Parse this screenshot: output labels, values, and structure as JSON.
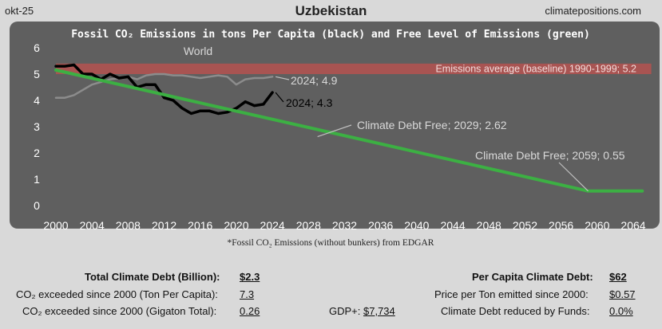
{
  "header": {
    "date": "okt-25",
    "country": "Uzbekistan",
    "site": "climatepositions.com"
  },
  "chart_data": {
    "type": "line",
    "title": "Fossil CO₂ Emissions in tons Per Capita (black) and Free Level of Emissions (green)",
    "source_note": "Fossil CO₂ Emissions (without bunkers) from EDGAR",
    "xlim": [
      2000,
      2066
    ],
    "ylim": [
      0,
      6
    ],
    "x_ticks": [
      2000,
      2004,
      2008,
      2012,
      2016,
      2020,
      2024,
      2028,
      2032,
      2036,
      2040,
      2044,
      2048,
      2052,
      2056,
      2060,
      2064
    ],
    "y_ticks": [
      0,
      1,
      2,
      3,
      4,
      5,
      6
    ],
    "baseline_band": {
      "label": "Emissions average (baseline) 1990-1999; 5.2",
      "value": 5.2,
      "low": 5.0,
      "high": 5.4,
      "color": "#c0504d"
    },
    "series": [
      {
        "name": "World",
        "color": "#8c8c8c",
        "x": [
          2000,
          2001,
          2002,
          2003,
          2004,
          2005,
          2006,
          2007,
          2008,
          2009,
          2010,
          2011,
          2012,
          2013,
          2014,
          2015,
          2016,
          2017,
          2018,
          2019,
          2020,
          2021,
          2022,
          2023,
          2024
        ],
        "y": [
          4.1,
          4.1,
          4.2,
          4.4,
          4.6,
          4.7,
          4.8,
          4.85,
          4.9,
          4.8,
          4.95,
          5.0,
          5.0,
          4.95,
          4.95,
          4.9,
          4.85,
          4.9,
          4.95,
          4.9,
          4.6,
          4.8,
          4.85,
          4.85,
          4.9
        ]
      },
      {
        "name": "Uzbekistan",
        "color": "#000000",
        "x": [
          2000,
          2001,
          2002,
          2003,
          2004,
          2005,
          2006,
          2007,
          2008,
          2009,
          2010,
          2011,
          2012,
          2013,
          2014,
          2015,
          2016,
          2017,
          2018,
          2019,
          2020,
          2021,
          2022,
          2023,
          2024
        ],
        "y": [
          5.3,
          5.3,
          5.35,
          5.0,
          5.0,
          4.8,
          5.0,
          4.85,
          4.9,
          4.5,
          4.6,
          4.6,
          4.1,
          4.0,
          3.7,
          3.5,
          3.6,
          3.6,
          3.5,
          3.55,
          3.7,
          3.95,
          3.8,
          3.85,
          4.3
        ]
      },
      {
        "name": "Climate Debt Free",
        "color": "#3cb043",
        "x": [
          2000,
          2059,
          2065
        ],
        "y": [
          5.15,
          0.55,
          0.55
        ]
      }
    ],
    "annotations": [
      {
        "text": "World",
        "x": 2017,
        "y": 5.7
      },
      {
        "text": "2024; 4.9",
        "x": 2024,
        "y": 4.9
      },
      {
        "text": "2024; 4.3",
        "x": 2024,
        "y": 4.3
      },
      {
        "text": "Climate Debt Free; 2029; 2.62",
        "x": 2029,
        "y": 2.62
      },
      {
        "text": "Climate Debt Free; 2059; 0.55",
        "x": 2059,
        "y": 0.55
      }
    ]
  },
  "stats": {
    "total_debt_label": "Total Climate Debt (Billion):",
    "total_debt_value": "$2.3",
    "exceeded_pc_label": "CO₂ exceeded since 2000 (Ton Per Capita):",
    "exceeded_pc_value": "7.3",
    "exceeded_gt_label": "CO₂ exceeded since 2000 (Gigaton Total):",
    "exceeded_gt_value": "0.26",
    "gdp_label": "GDP+:",
    "gdp_value": "$7,734",
    "pc_debt_label": "Per Capita Climate Debt:",
    "pc_debt_value": "$62",
    "price_label": "Price per Ton emitted since 2000:",
    "price_value": "$0.57",
    "reduced_label": "Climate Debt reduced by Funds:",
    "reduced_value": "0.0%"
  }
}
